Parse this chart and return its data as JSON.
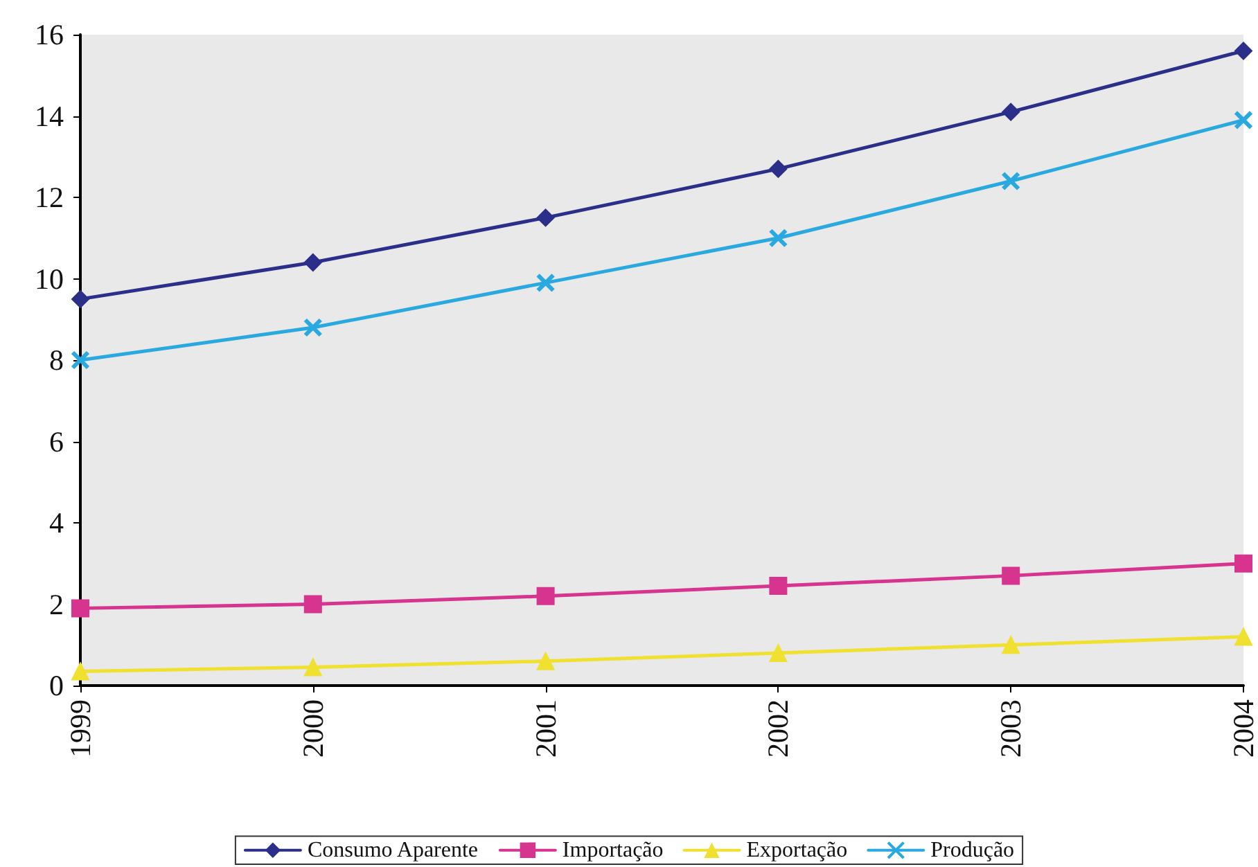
{
  "chart_data": {
    "type": "line",
    "categories": [
      "1999",
      "2000",
      "2001",
      "2002",
      "2003",
      "2004"
    ],
    "series": [
      {
        "name": "Consumo Aparente",
        "color": "#2b2f8a",
        "marker": "diamond",
        "values": [
          9.5,
          10.4,
          11.5,
          12.7,
          14.1,
          15.6
        ]
      },
      {
        "name": "Importação",
        "color": "#d6348f",
        "marker": "square",
        "values": [
          1.9,
          2.0,
          2.2,
          2.45,
          2.7,
          3.0
        ]
      },
      {
        "name": "Exportação",
        "color": "#f0e030",
        "marker": "triangle",
        "values": [
          0.35,
          0.45,
          0.6,
          0.8,
          1.0,
          1.2
        ]
      },
      {
        "name": "Produção",
        "color": "#2aa8e0",
        "marker": "cross",
        "values": [
          8.0,
          8.8,
          9.9,
          11.0,
          12.4,
          13.9
        ]
      }
    ],
    "ylim": [
      0,
      16
    ],
    "yticks": [
      0,
      2,
      4,
      6,
      8,
      10,
      12,
      14,
      16
    ],
    "grid": false,
    "legend": "bottom",
    "line_style": "solid"
  }
}
